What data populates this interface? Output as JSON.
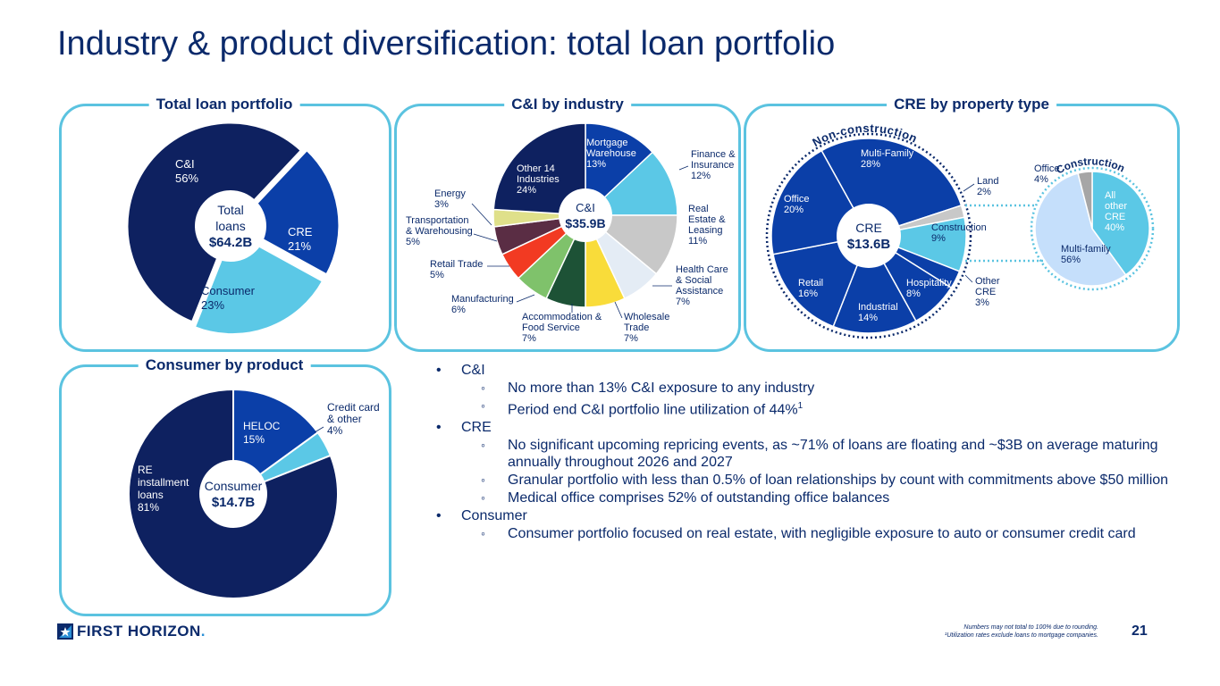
{
  "title": "Industry & product diversification: total loan portfolio",
  "panels": {
    "total": "Total loan portfolio",
    "ci": "C&I by industry",
    "cre": "CRE by property type",
    "consumer": "Consumer by product"
  },
  "chart_data": [
    {
      "type": "pie",
      "id": "total",
      "center_lines": [
        "Total",
        "loans",
        "$64.2B"
      ],
      "slices": [
        {
          "label": "C&I",
          "value": 56,
          "pct": "56%",
          "color": "#0e2160"
        },
        {
          "label": "CRE",
          "value": 21,
          "pct": "21%",
          "color": "#0b3fa8"
        },
        {
          "label": "Consumer",
          "value": 23,
          "pct": "23%",
          "color": "#5bc8e6"
        }
      ]
    },
    {
      "type": "pie",
      "id": "ci",
      "center_lines": [
        "C&I",
        "$35.9B"
      ],
      "slices": [
        {
          "label": "Mortgage Warehouse",
          "value": 13,
          "pct": "13%",
          "color": "#0b3fa8"
        },
        {
          "label": "Finance & Insurance",
          "value": 12,
          "pct": "12%",
          "color": "#5bc8e6"
        },
        {
          "label": "Real Estate & Leasing",
          "value": 11,
          "pct": "11%",
          "color": "#c8c8c8"
        },
        {
          "label": "Health Care & Social Assistance",
          "value": 7,
          "pct": "7%",
          "color": "#e4ecf5"
        },
        {
          "label": "Wholesale Trade",
          "value": 7,
          "pct": "7%",
          "color": "#f9dc3a"
        },
        {
          "label": "Accommodation & Food Service",
          "value": 7,
          "pct": "7%",
          "color": "#1d5236"
        },
        {
          "label": "Manufacturing",
          "value": 6,
          "pct": "6%",
          "color": "#7fc26b"
        },
        {
          "label": "Retail Trade",
          "value": 5,
          "pct": "5%",
          "color": "#f23a22"
        },
        {
          "label": "Transportation & Warehousing",
          "value": 5,
          "pct": "5%",
          "color": "#5a2d44"
        },
        {
          "label": "Energy",
          "value": 3,
          "pct": "3%",
          "color": "#dfe08a"
        },
        {
          "label": "Other 14 Industries",
          "value": 24,
          "pct": "24%",
          "color": "#0e2160"
        }
      ]
    },
    {
      "type": "pie",
      "id": "cre",
      "center_lines": [
        "CRE",
        "$13.6B"
      ],
      "arc_label": "Non-construction",
      "slices": [
        {
          "label": "Multi-Family",
          "value": 28,
          "pct": "28%",
          "color": "#0b3fa8"
        },
        {
          "label": "Land",
          "value": 2,
          "pct": "2%",
          "color": "#c8c8c8"
        },
        {
          "label": "Construction",
          "value": 9,
          "pct": "9%",
          "color": "#5bc8e6"
        },
        {
          "label": "Other CRE",
          "value": 3,
          "pct": "3%",
          "color": "#0b3fa8"
        },
        {
          "label": "Hospitality",
          "value": 8,
          "pct": "8%",
          "color": "#0b3fa8"
        },
        {
          "label": "Industrial",
          "value": 14,
          "pct": "14%",
          "color": "#0b3fa8"
        },
        {
          "label": "Retail",
          "value": 16,
          "pct": "16%",
          "color": "#0b3fa8"
        },
        {
          "label": "Office",
          "value": 20,
          "pct": "20%",
          "color": "#0b3fa8"
        }
      ]
    },
    {
      "type": "pie",
      "id": "construction",
      "arc_label": "Construction",
      "slices": [
        {
          "label": "All other CRE",
          "value": 40,
          "pct": "40%",
          "color": "#5bc8e6"
        },
        {
          "label": "Multi-family",
          "value": 56,
          "pct": "56%",
          "color": "#c5dffb"
        },
        {
          "label": "Office",
          "value": 4,
          "pct": "4%",
          "color": "#a6a6a6"
        }
      ]
    },
    {
      "type": "pie",
      "id": "consumer",
      "center_lines": [
        "Consumer",
        "$14.7B"
      ],
      "slices": [
        {
          "label": "HELOC",
          "value": 15,
          "pct": "15%",
          "color": "#0b3fa8"
        },
        {
          "label": "Credit card & other",
          "value": 4,
          "pct": "4%",
          "color": "#5bc8e6"
        },
        {
          "label": "RE installment loans",
          "value": 81,
          "pct": "81%",
          "color": "#0e2160"
        }
      ]
    }
  ],
  "bullets": [
    {
      "text": "C&I",
      "subs": [
        {
          "text": "No more than 13% C&I exposure to any industry"
        },
        {
          "text": "Period end C&I portfolio line utilization of 44%",
          "sup": "1"
        }
      ]
    },
    {
      "text": "CRE",
      "subs": [
        {
          "text": "No significant upcoming repricing events, as ~71% of loans are floating and ~$3B on average maturing annually throughout 2026 and 2027"
        },
        {
          "text": "Granular portfolio with less than 0.5% of loan relationships by count with commitments above $50 million"
        },
        {
          "text": "Medical office comprises 52% of outstanding office balances"
        }
      ]
    },
    {
      "text": "Consumer",
      "subs": [
        {
          "text": "Consumer portfolio focused on real estate, with negligible exposure to auto or consumer credit card"
        }
      ]
    }
  ],
  "footer": {
    "logo": "FIRST HORIZON",
    "logo_dot": ".",
    "note1": "Numbers may not total to 100% due to rounding.",
    "note2": "¹Utilization rates exclude loans to mortgage companies.",
    "page": "21"
  }
}
